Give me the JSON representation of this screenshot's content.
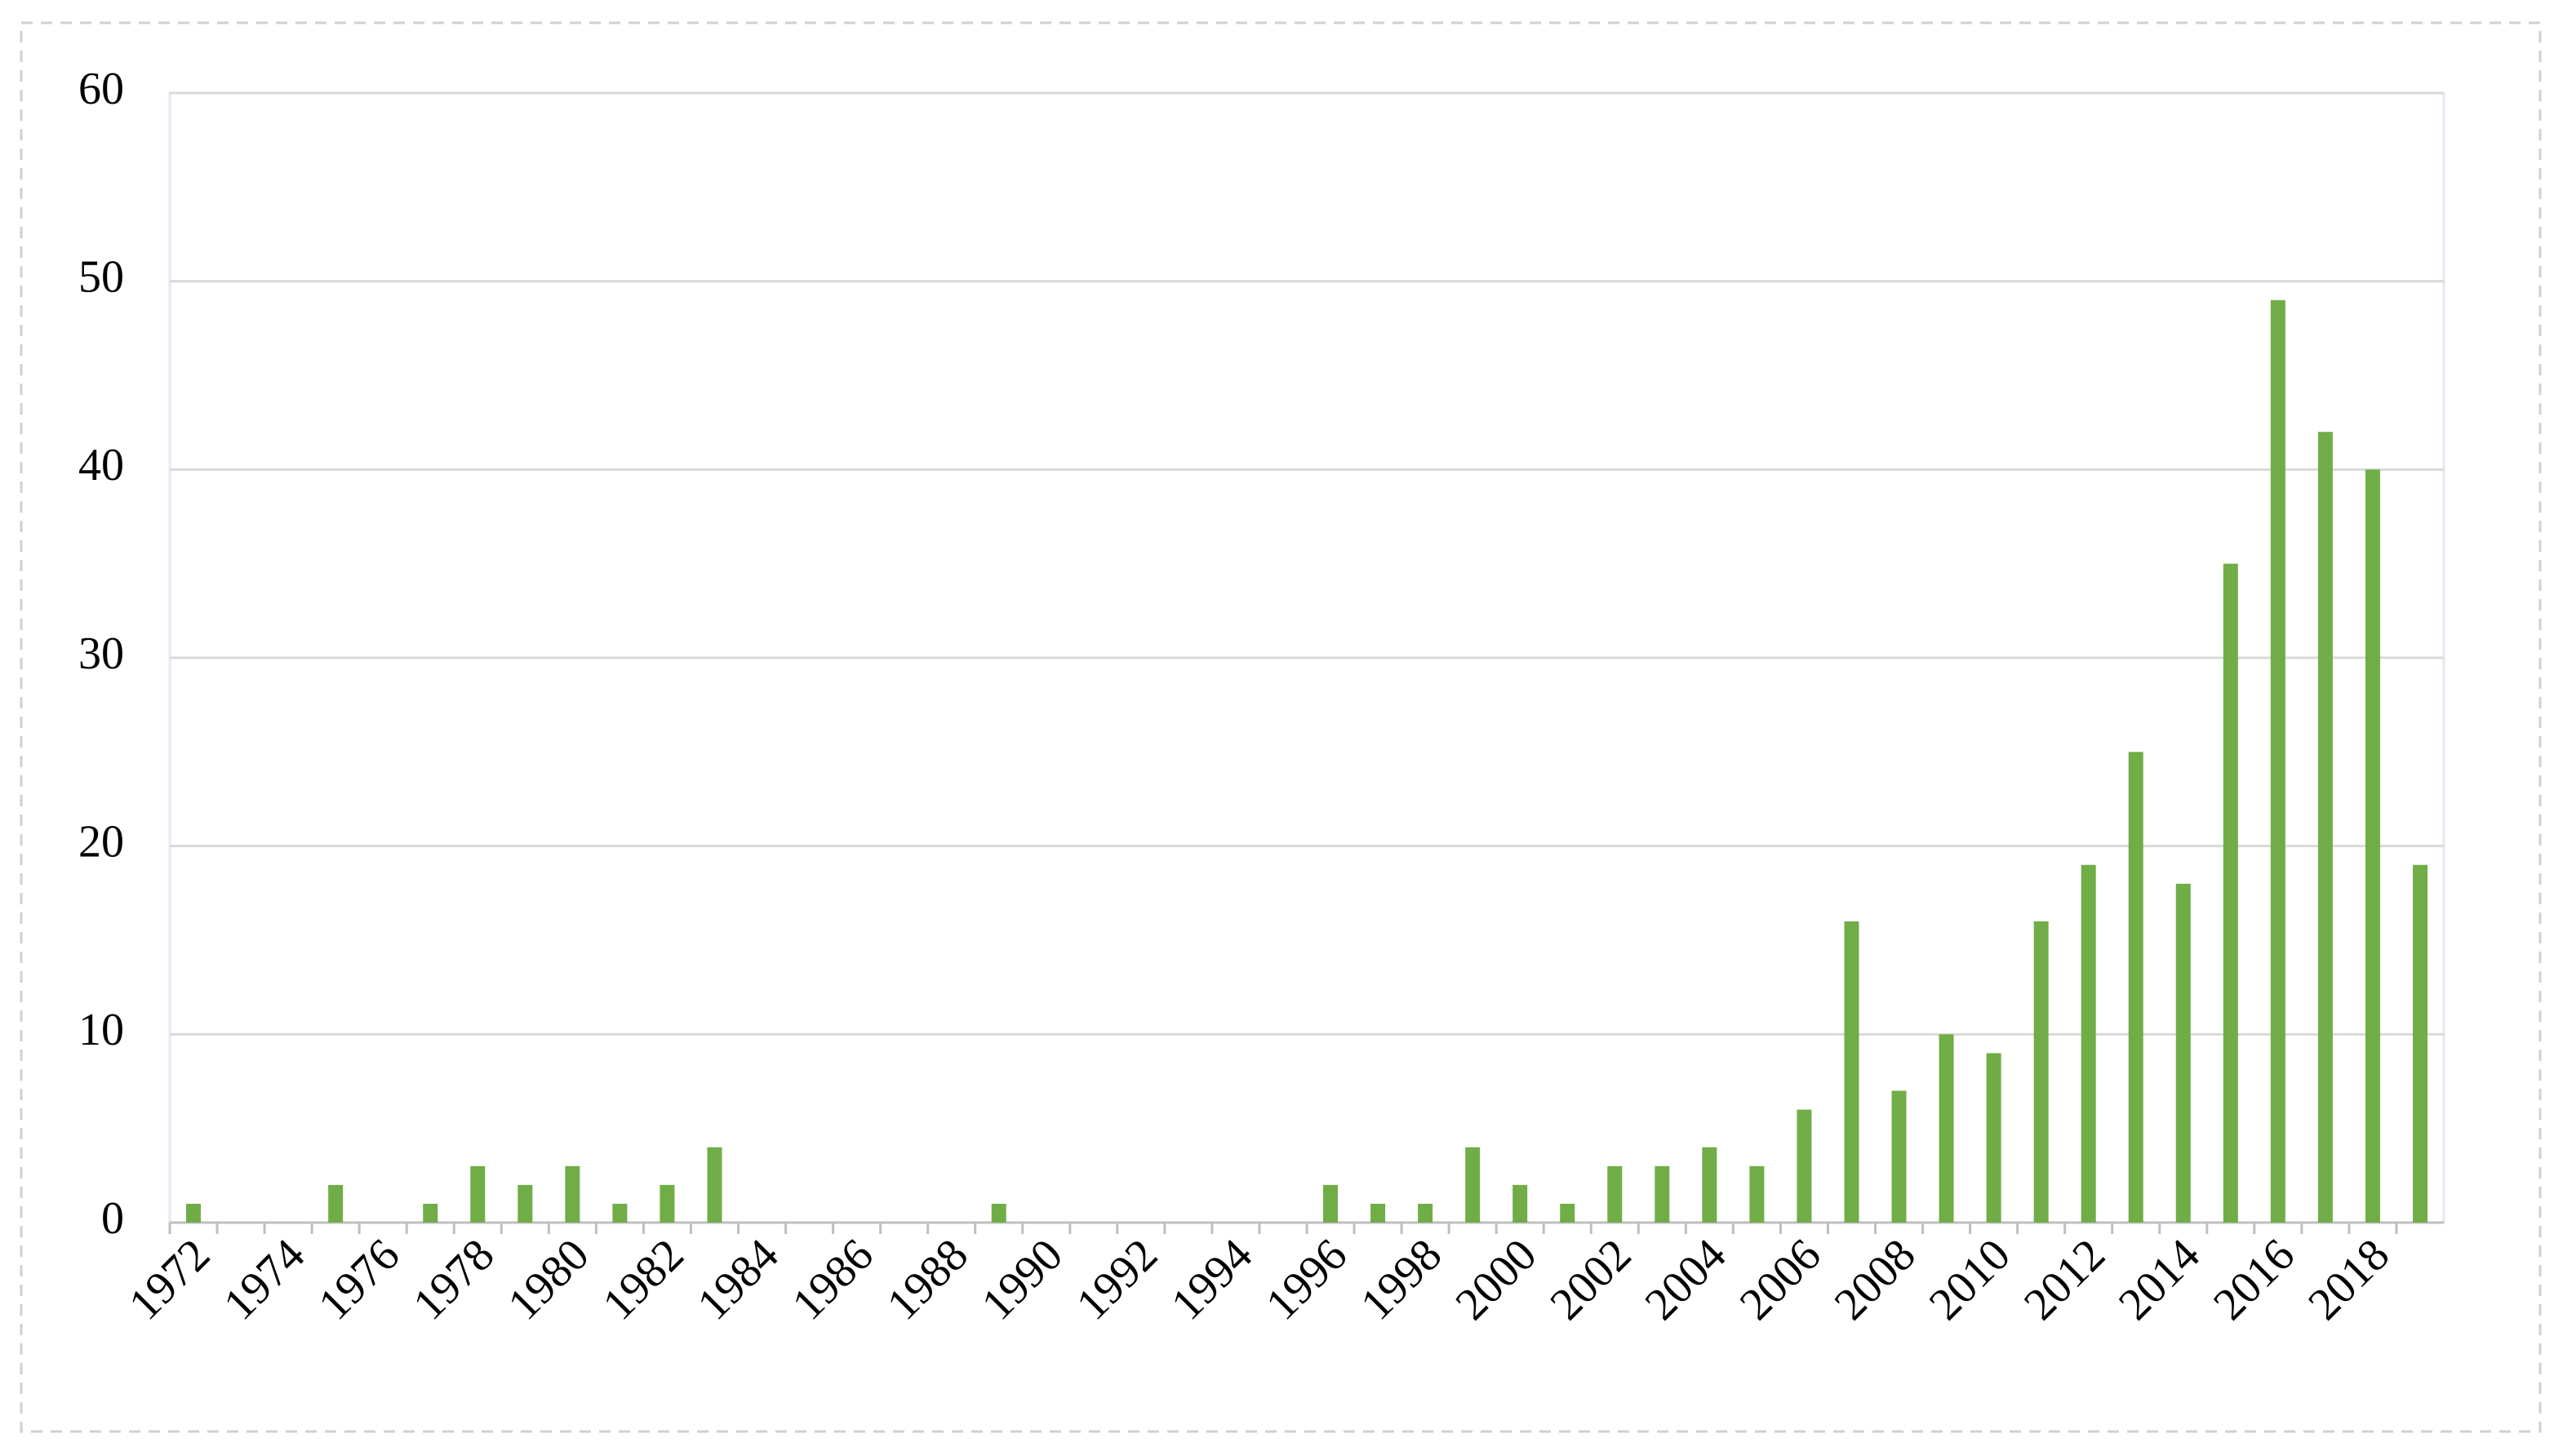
{
  "chart_data": {
    "type": "bar",
    "categories": [
      "1972",
      null,
      "1974",
      null,
      "1976",
      null,
      "1978",
      null,
      "1980",
      null,
      "1982",
      null,
      "1984",
      null,
      "1986",
      null,
      "1988",
      null,
      "1990",
      null,
      "1992",
      null,
      "1994",
      null,
      "1996",
      null,
      "1998",
      null,
      "2000",
      null,
      "2002",
      null,
      "2004",
      null,
      "2006",
      null,
      "2008",
      null,
      "2010",
      null,
      "2012",
      null,
      "2014",
      null,
      "2016",
      null,
      "2018",
      null
    ],
    "values": [
      1,
      0,
      0,
      2,
      0,
      1,
      3,
      2,
      3,
      1,
      2,
      4,
      0,
      0,
      0,
      0,
      0,
      1,
      0,
      0,
      0,
      0,
      0,
      0,
      2,
      1,
      1,
      4,
      2,
      1,
      3,
      3,
      4,
      3,
      6,
      16,
      7,
      10,
      9,
      16,
      19,
      25,
      18,
      35,
      49,
      42,
      40,
      19
    ],
    "color": "#70ad47",
    "ylim": [
      0,
      60
    ],
    "yticks": [
      0,
      10,
      20,
      30,
      40,
      50,
      60
    ],
    "grid": true
  }
}
